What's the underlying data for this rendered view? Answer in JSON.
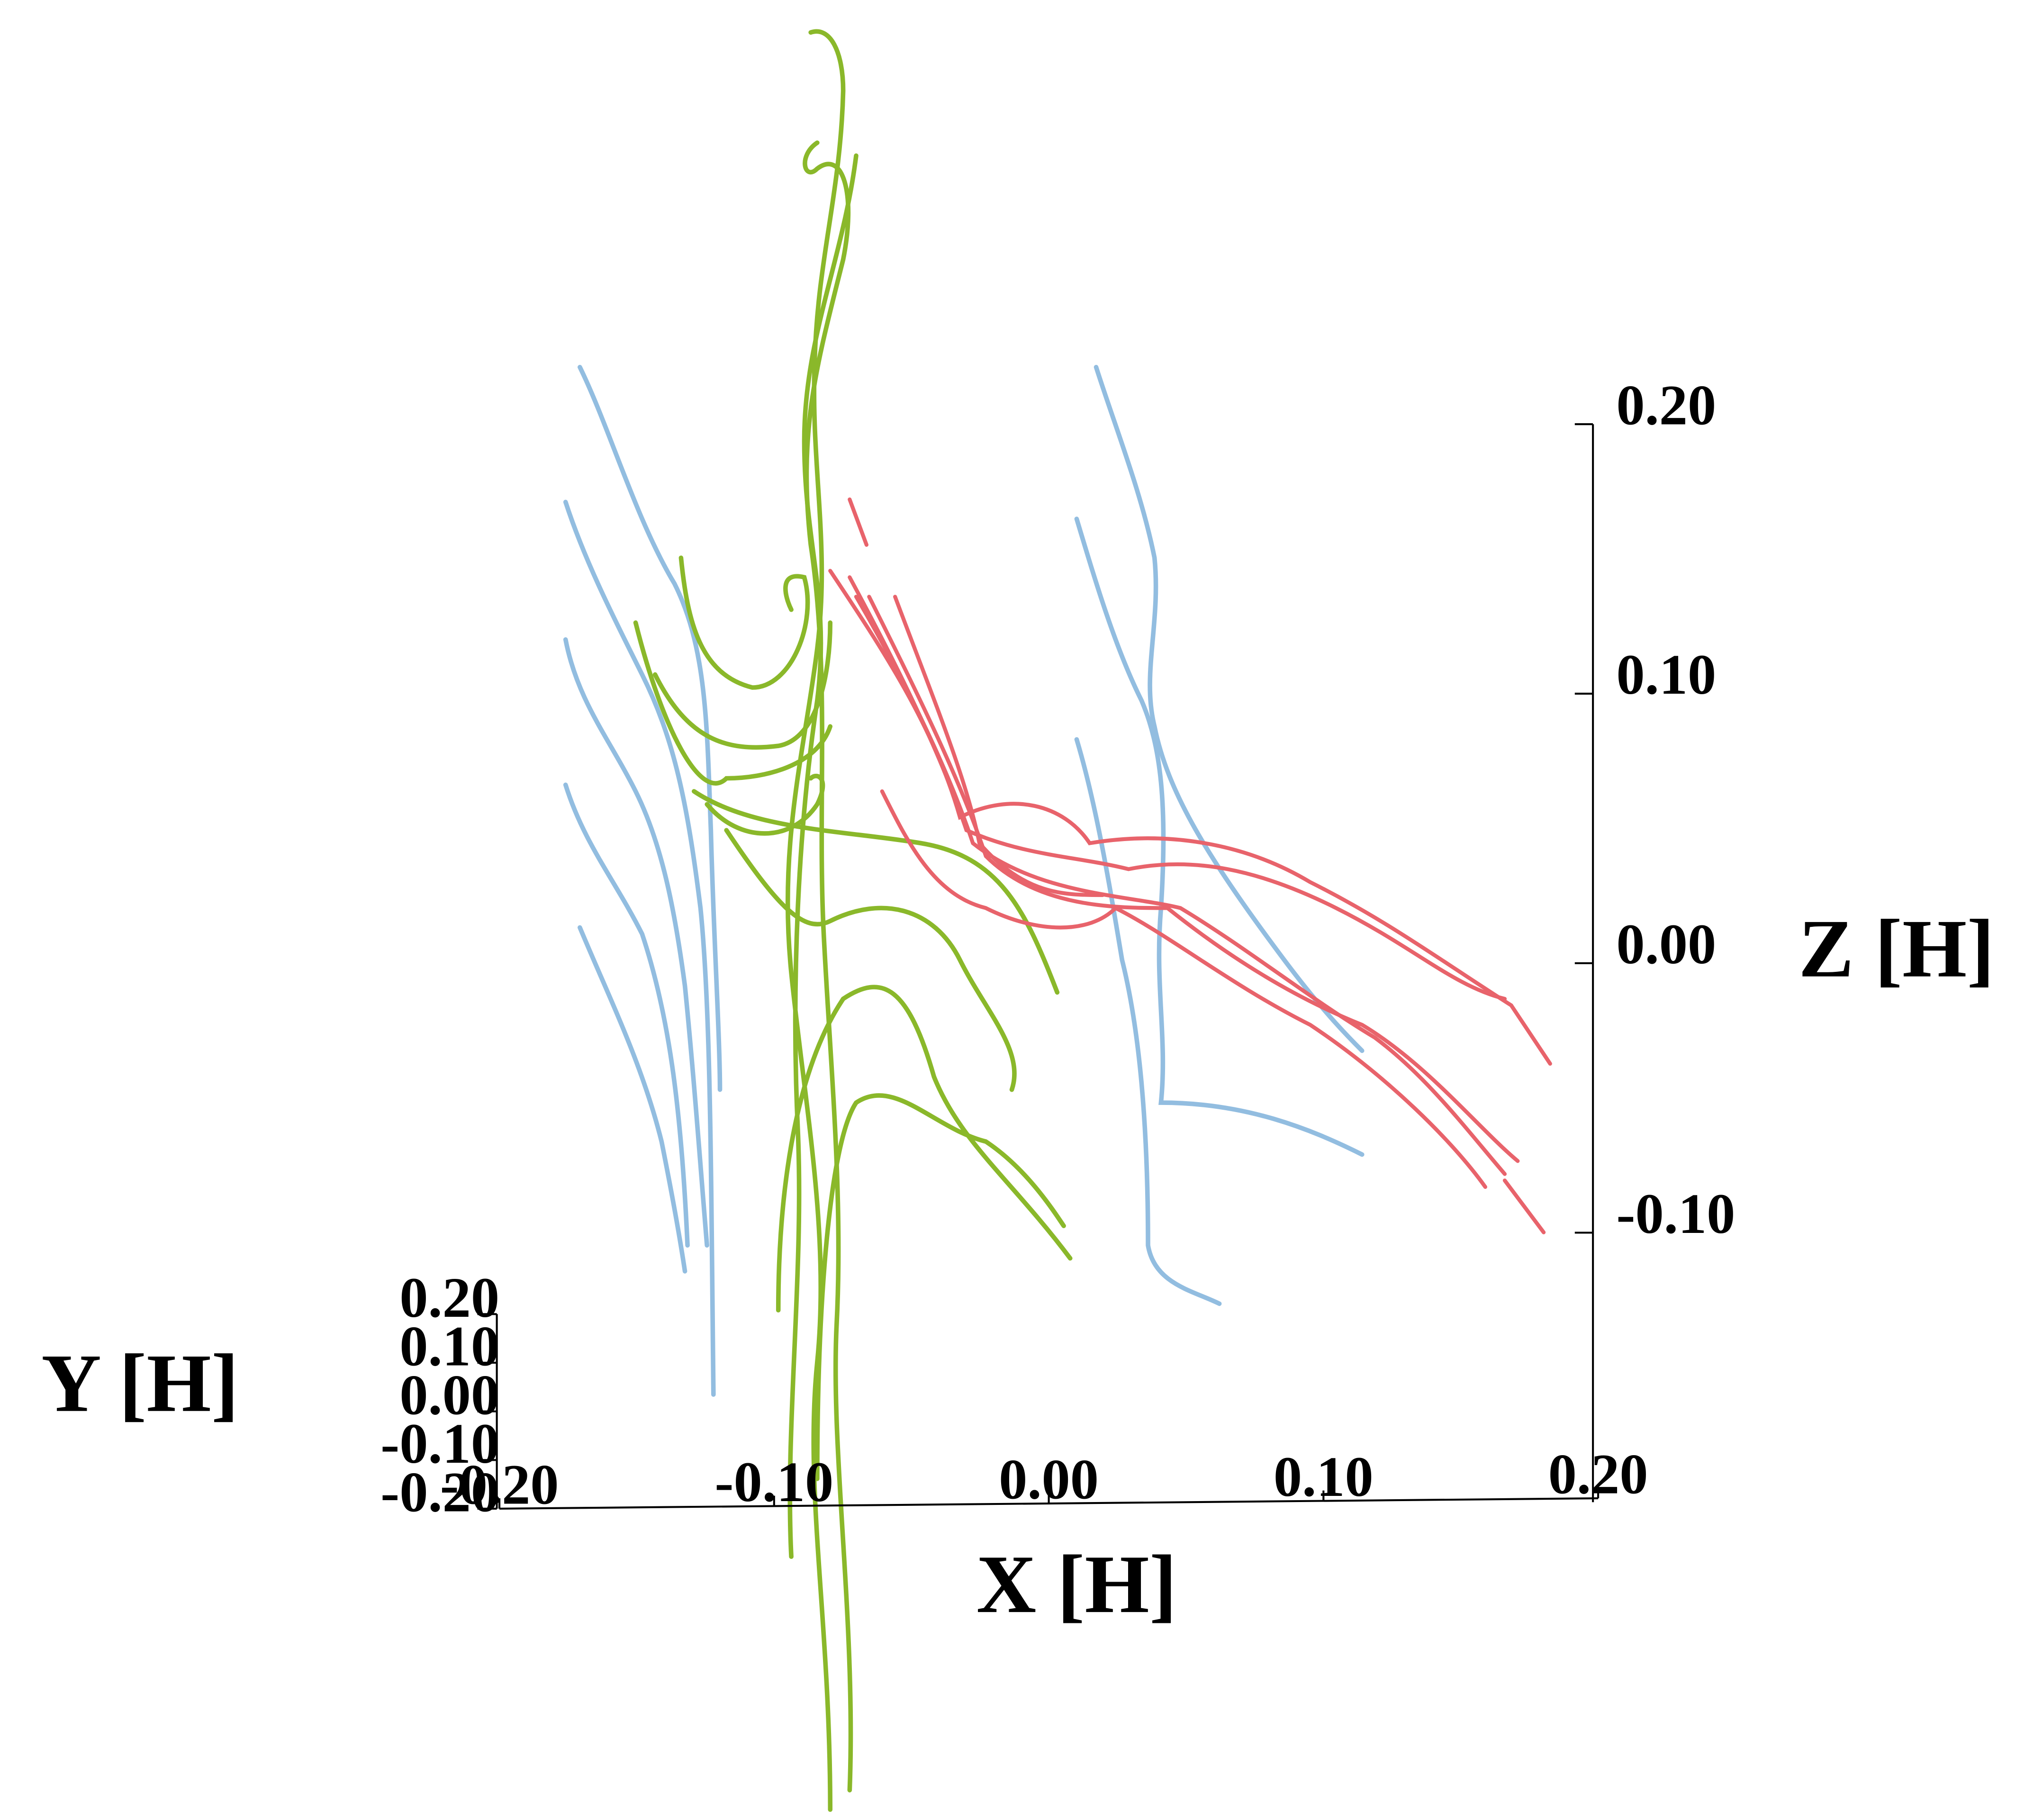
{
  "chart_data": {
    "type": "streamline3d",
    "xlabel": "X [H]",
    "ylabel": "Y [H]",
    "zlabel": "Z [H]",
    "xlim": [
      -0.2,
      0.2
    ],
    "ylim": [
      -0.2,
      0.2
    ],
    "zlim": [
      -0.2,
      0.2
    ],
    "xticks": [
      {
        "value": -0.2,
        "label": "-0.20"
      },
      {
        "value": -0.1,
        "label": "-0.10"
      },
      {
        "value": 0,
        "label": "0.00"
      },
      {
        "value": 0.1,
        "label": "0.10"
      },
      {
        "value": 0.2,
        "label": "0.20"
      }
    ],
    "yticks": [
      {
        "value": 0.2,
        "label": "0.20"
      },
      {
        "value": 0.1,
        "label": "0.10"
      },
      {
        "value": 0,
        "label": "0.00"
      },
      {
        "value": -0.1,
        "label": "-0.10"
      },
      {
        "value": -0.2,
        "label": "-0.20"
      }
    ],
    "zticks": [
      {
        "value": 0.2,
        "label": "0.20"
      },
      {
        "value": 0.1,
        "label": "0.10"
      },
      {
        "value": 0,
        "label": "0.00"
      },
      {
        "value": -0.1,
        "label": "-0.10"
      }
    ]
  }
}
